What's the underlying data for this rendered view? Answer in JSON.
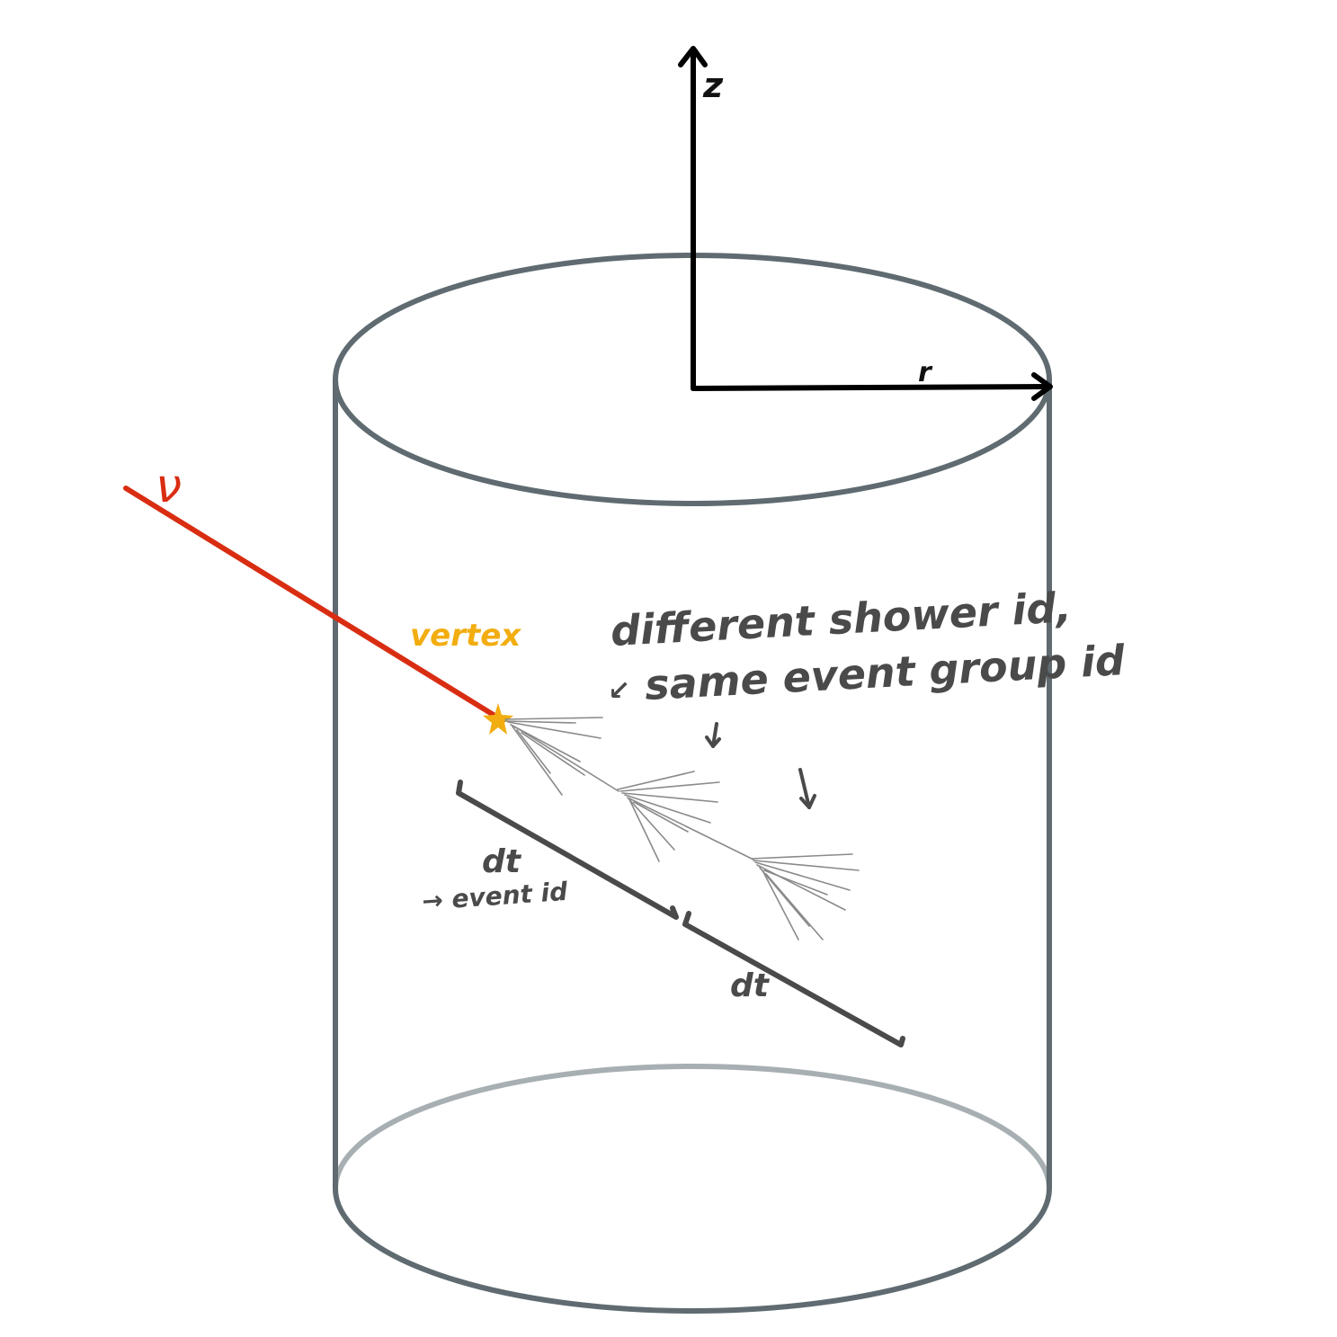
{
  "axes": {
    "z_label": "z",
    "r_label": "r"
  },
  "neutrino": {
    "label": "ν",
    "color": "#d92d12"
  },
  "vertex": {
    "label": "vertex",
    "color": "#f2ad10"
  },
  "annotations": {
    "line1": "different shower id,",
    "line2": "same event group id",
    "dt_first": "dt",
    "event_id": "→ event id",
    "dt_second": "dt"
  },
  "colors": {
    "cylinder": "#5f6b70",
    "cylinder_bottom_back": "#a7afb2",
    "axes": "#000000",
    "shower": "#8a8a8a",
    "ink": "#4a4a4a"
  }
}
